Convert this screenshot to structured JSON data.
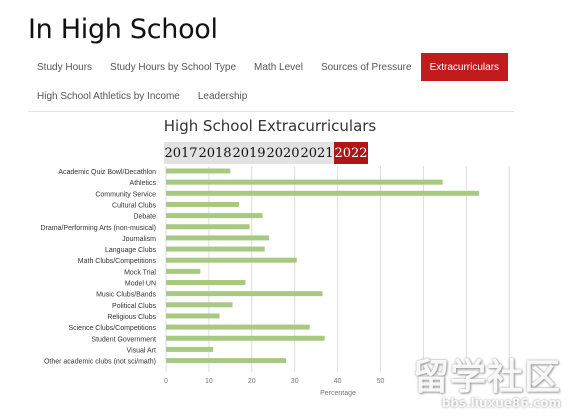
{
  "page": {
    "title": "In High School"
  },
  "tabs": [
    {
      "label": "Study Hours",
      "active": false
    },
    {
      "label": "Study Hours by School Type",
      "active": false
    },
    {
      "label": "Math Level",
      "active": false
    },
    {
      "label": "Sources of Pressure",
      "active": false
    },
    {
      "label": "Extracurriculars",
      "active": true
    },
    {
      "label": "High School Athletics by Income",
      "active": false
    },
    {
      "label": "Leadership",
      "active": false
    }
  ],
  "year_selector": {
    "years": [
      "2017",
      "2018",
      "2019",
      "2020",
      "2021",
      "2022"
    ],
    "selected": "2022"
  },
  "colors": {
    "accent": "#c11b1b",
    "bar": "#a8c981",
    "grid": "#dcdcdc"
  },
  "watermark": {
    "main": "留学社区",
    "url": "bbs.liuxue86.com"
  },
  "chart_data": {
    "type": "bar",
    "orientation": "horizontal",
    "title": "High School Extracurriculars",
    "xlabel": "Percentage",
    "ylabel": "",
    "xlim": [
      0,
      80
    ],
    "xticks": [
      0,
      10,
      20,
      30,
      40,
      50,
      60,
      70,
      80
    ],
    "xtick_labels": [
      "0",
      "10",
      "20",
      "30",
      "40",
      "50",
      "",
      "",
      ""
    ],
    "grid": true,
    "categories": [
      "Academic Quiz Bowl/Decathlon",
      "Athletics",
      "Community Service",
      "Cultural Clubs",
      "Debate",
      "Drama/Performing Arts (non-musical)",
      "Journalism",
      "Language Clubs",
      "Math Clubs/Competitions",
      "Mock Trial",
      "Model UN",
      "Music Clubs/Bands",
      "Political Clubs",
      "Religious Clubs",
      "Science Clubs/Competitions",
      "Student Government",
      "Visual Art",
      "Other academic clubs (not sci/math)"
    ],
    "values": [
      15,
      64.5,
      73,
      17,
      22.5,
      19.5,
      24,
      23,
      30.5,
      8,
      18.5,
      36.5,
      15.5,
      12.5,
      33.5,
      37,
      11,
      28
    ]
  }
}
